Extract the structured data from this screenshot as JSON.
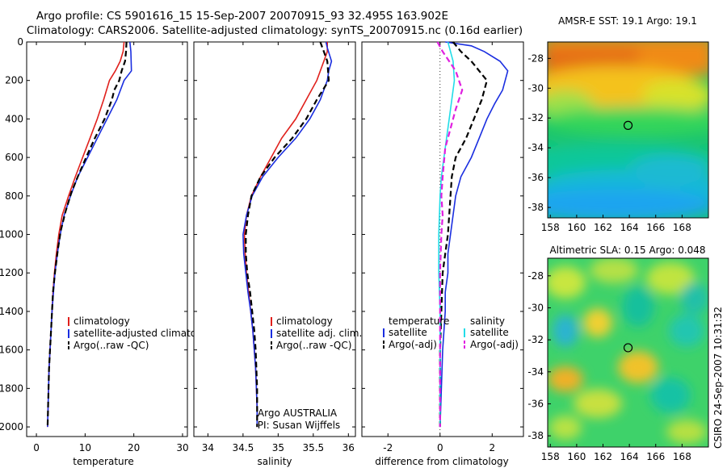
{
  "header": {
    "line1": "Argo profile: CS 5901616_15 15-Sep-2007 20070915_93 32.495S 163.902E",
    "line2": "Climatology: CARS2006. Satellite-adjusted climatology: synTS_20070915.nc (0.16d earlier)"
  },
  "footer": {
    "credit": "CSIRO 24-Sep-2007 10:31:32"
  },
  "colors": {
    "climatology": "#e0201c",
    "satellite": "#1a2ee0",
    "argo": "#000000",
    "satellite_salinity": "#22dde8",
    "argo_salinity_adj": "#e020e0"
  },
  "depth_axis": {
    "ticks": [
      "0",
      "200",
      "400",
      "600",
      "800",
      "1000",
      "1200",
      "1400",
      "1600",
      "1800",
      "2000"
    ],
    "range": [
      0,
      2050
    ],
    "reversed": true
  },
  "chart_data": [
    {
      "type": "line",
      "id": "temperature",
      "xlabel": "temperature",
      "xlim": [
        -2,
        31
      ],
      "xticks": [
        "0",
        "10",
        "20",
        "30"
      ],
      "legend": {
        "placement": "bottom-center",
        "entries": [
          "climatology",
          "satellite-adjusted climatology",
          "Argo(..raw -QC)"
        ]
      },
      "series": [
        {
          "name": "climatology",
          "color_key": "climatology",
          "dash": false,
          "points": [
            [
              18.0,
              0
            ],
            [
              17.8,
              50
            ],
            [
              17.2,
              100
            ],
            [
              16.2,
              150
            ],
            [
              15.0,
              200
            ],
            [
              13.8,
              300
            ],
            [
              12.5,
              400
            ],
            [
              11.0,
              500
            ],
            [
              9.5,
              600
            ],
            [
              8.0,
              700
            ],
            [
              6.6,
              800
            ],
            [
              5.3,
              900
            ],
            [
              4.6,
              1000
            ],
            [
              4.1,
              1100
            ],
            [
              3.7,
              1200
            ],
            [
              3.4,
              1300
            ],
            [
              3.2,
              1400
            ],
            [
              3.0,
              1500
            ],
            [
              2.8,
              1600
            ],
            [
              2.6,
              1700
            ],
            [
              2.5,
              1800
            ],
            [
              2.4,
              1900
            ],
            [
              2.3,
              2000
            ]
          ]
        },
        {
          "name": "satellite-adjusted climatology",
          "color_key": "satellite",
          "dash": false,
          "points": [
            [
              19.2,
              0
            ],
            [
              19.4,
              50
            ],
            [
              19.5,
              150
            ],
            [
              18.0,
              200
            ],
            [
              16.5,
              300
            ],
            [
              14.5,
              400
            ],
            [
              12.5,
              500
            ],
            [
              10.5,
              600
            ],
            [
              8.5,
              700
            ],
            [
              7.0,
              800
            ],
            [
              5.7,
              900
            ],
            [
              4.9,
              1000
            ],
            [
              4.3,
              1100
            ],
            [
              3.8,
              1200
            ],
            [
              3.5,
              1300
            ],
            [
              3.2,
              1400
            ],
            [
              3.0,
              1500
            ],
            [
              2.8,
              1600
            ],
            [
              2.6,
              1700
            ],
            [
              2.5,
              1800
            ],
            [
              2.4,
              1900
            ],
            [
              2.3,
              2000
            ]
          ]
        },
        {
          "name": "Argo(..raw -QC)",
          "color_key": "argo",
          "dash": true,
          "points": [
            [
              18.5,
              0
            ],
            [
              18.4,
              50
            ],
            [
              18.2,
              100
            ],
            [
              17.5,
              150
            ],
            [
              17.0,
              200
            ],
            [
              16.0,
              250
            ],
            [
              15.5,
              300
            ],
            [
              14.0,
              400
            ],
            [
              12.0,
              500
            ],
            [
              10.2,
              600
            ],
            [
              8.5,
              700
            ],
            [
              7.2,
              780
            ],
            [
              6.0,
              880
            ],
            [
              5.0,
              980
            ],
            [
              4.4,
              1080
            ],
            [
              3.8,
              1200
            ],
            [
              3.4,
              1300
            ],
            [
              3.2,
              1400
            ],
            [
              3.0,
              1500
            ],
            [
              2.8,
              1600
            ],
            [
              2.6,
              1700
            ],
            [
              2.5,
              1800
            ],
            [
              2.4,
              1900
            ],
            [
              2.3,
              2000
            ]
          ]
        }
      ]
    },
    {
      "type": "line",
      "id": "salinity",
      "xlabel": "salinity",
      "xlim": [
        33.8,
        36.1
      ],
      "xticks": [
        "34",
        "34.5",
        "35",
        "35.5",
        "36"
      ],
      "legend": {
        "placement": "bottom-center",
        "entries": [
          "climatology",
          "satellite adj. clim.",
          "Argo(..raw -QC)"
        ]
      },
      "annotation": [
        "Argo AUSTRALIA",
        "PI: Susan Wijffels"
      ],
      "series": [
        {
          "name": "climatology",
          "color_key": "climatology",
          "dash": false,
          "points": [
            [
              35.7,
              0
            ],
            [
              35.7,
              50
            ],
            [
              35.65,
              100
            ],
            [
              35.55,
              200
            ],
            [
              35.4,
              300
            ],
            [
              35.25,
              400
            ],
            [
              35.05,
              500
            ],
            [
              34.9,
              600
            ],
            [
              34.75,
              700
            ],
            [
              34.62,
              800
            ],
            [
              34.55,
              900
            ],
            [
              34.52,
              1000
            ],
            [
              34.53,
              1100
            ],
            [
              34.55,
              1200
            ],
            [
              34.58,
              1300
            ],
            [
              34.61,
              1400
            ],
            [
              34.64,
              1500
            ],
            [
              34.66,
              1600
            ],
            [
              34.68,
              1700
            ],
            [
              34.69,
              1800
            ],
            [
              34.7,
              1900
            ],
            [
              34.7,
              2000
            ]
          ]
        },
        {
          "name": "satellite adj. clim.",
          "color_key": "satellite",
          "dash": false,
          "points": [
            [
              35.68,
              0
            ],
            [
              35.7,
              30
            ],
            [
              35.76,
              100
            ],
            [
              35.72,
              150
            ],
            [
              35.7,
              200
            ],
            [
              35.6,
              300
            ],
            [
              35.45,
              400
            ],
            [
              35.25,
              500
            ],
            [
              35.0,
              600
            ],
            [
              34.78,
              700
            ],
            [
              34.63,
              800
            ],
            [
              34.55,
              900
            ],
            [
              34.5,
              1000
            ],
            [
              34.51,
              1100
            ],
            [
              34.54,
              1200
            ],
            [
              34.57,
              1300
            ],
            [
              34.61,
              1400
            ],
            [
              34.64,
              1500
            ],
            [
              34.66,
              1600
            ],
            [
              34.68,
              1700
            ],
            [
              34.69,
              1800
            ],
            [
              34.7,
              1900
            ],
            [
              34.7,
              2000
            ]
          ]
        },
        {
          "name": "Argo(..raw -QC)",
          "color_key": "argo",
          "dash": true,
          "points": [
            [
              35.6,
              0
            ],
            [
              35.65,
              50
            ],
            [
              35.7,
              100
            ],
            [
              35.72,
              200
            ],
            [
              35.55,
              300
            ],
            [
              35.4,
              400
            ],
            [
              35.2,
              500
            ],
            [
              34.95,
              600
            ],
            [
              34.75,
              700
            ],
            [
              34.62,
              800
            ],
            [
              34.57,
              900
            ],
            [
              34.54,
              1000
            ],
            [
              34.54,
              1100
            ],
            [
              34.56,
              1200
            ],
            [
              34.6,
              1300
            ],
            [
              34.63,
              1400
            ],
            [
              34.66,
              1500
            ],
            [
              34.68,
              1600
            ],
            [
              34.69,
              1700
            ],
            [
              34.7,
              1800
            ],
            [
              34.7,
              1900
            ],
            [
              34.7,
              2000
            ]
          ]
        }
      ]
    },
    {
      "type": "line",
      "id": "difference",
      "xlabel": "difference from climatology",
      "xlim": [
        -3,
        3.2
      ],
      "xticks": [
        "-2",
        "0",
        "2"
      ],
      "zero_line": true,
      "legend": {
        "placement": "bottom",
        "columns": [
          {
            "title": "temperature",
            "entries": [
              "satellite",
              "Argo(-adj)"
            ]
          },
          {
            "title": "salinity",
            "entries": [
              "satellite",
              "Argo(-adj)"
            ]
          }
        ]
      },
      "series": [
        {
          "name": "satellite",
          "group": "temperature",
          "color_key": "satellite",
          "dash": false,
          "points": [
            [
              0.2,
              0
            ],
            [
              1.2,
              20
            ],
            [
              1.7,
              50
            ],
            [
              2.3,
              100
            ],
            [
              2.6,
              150
            ],
            [
              2.5,
              200
            ],
            [
              2.4,
              250
            ],
            [
              2.1,
              320
            ],
            [
              1.8,
              400
            ],
            [
              1.5,
              500
            ],
            [
              1.2,
              600
            ],
            [
              0.8,
              700
            ],
            [
              0.6,
              800
            ],
            [
              0.5,
              900
            ],
            [
              0.4,
              1000
            ],
            [
              0.3,
              1100
            ],
            [
              0.3,
              1200
            ],
            [
              0.2,
              1300
            ],
            [
              0.2,
              1400
            ],
            [
              0.1,
              1600
            ],
            [
              0.05,
              1800
            ],
            [
              0.0,
              2000
            ]
          ]
        },
        {
          "name": "Argo(-adj)",
          "group": "temperature",
          "color_key": "argo",
          "dash": true,
          "points": [
            [
              0.5,
              0
            ],
            [
              0.8,
              50
            ],
            [
              1.2,
              100
            ],
            [
              1.8,
              200
            ],
            [
              1.6,
              300
            ],
            [
              1.3,
              400
            ],
            [
              1.0,
              500
            ],
            [
              0.6,
              600
            ],
            [
              0.45,
              700
            ],
            [
              0.4,
              800
            ],
            [
              0.35,
              900
            ],
            [
              0.3,
              1000
            ],
            [
              0.2,
              1100
            ],
            [
              0.1,
              1200
            ],
            [
              0.05,
              1400
            ],
            [
              0.0,
              1600
            ],
            [
              0.0,
              2000
            ]
          ]
        },
        {
          "name": "satellite",
          "group": "salinity",
          "color_key": "satellite_salinity",
          "dash": false,
          "points": [
            [
              0.3,
              0
            ],
            [
              0.4,
              50
            ],
            [
              0.5,
              100
            ],
            [
              0.55,
              200
            ],
            [
              0.45,
              300
            ],
            [
              0.35,
              400
            ],
            [
              0.25,
              500
            ],
            [
              0.15,
              600
            ],
            [
              0.05,
              700
            ],
            [
              0.0,
              800
            ],
            [
              -0.05,
              1000
            ],
            [
              -0.05,
              1200
            ],
            [
              0.0,
              1400
            ],
            [
              0.0,
              2000
            ]
          ]
        },
        {
          "name": "Argo(-adj)",
          "group": "salinity",
          "color_key": "argo_salinity_adj",
          "dash": true,
          "points": [
            [
              -0.1,
              0
            ],
            [
              0.1,
              50
            ],
            [
              0.6,
              150
            ],
            [
              0.85,
              250
            ],
            [
              0.6,
              350
            ],
            [
              0.4,
              450
            ],
            [
              0.2,
              550
            ],
            [
              0.1,
              700
            ],
            [
              0.05,
              800
            ],
            [
              0.1,
              900
            ],
            [
              0.05,
              1000
            ],
            [
              0.0,
              1200
            ],
            [
              0.0,
              2000
            ]
          ]
        }
      ]
    }
  ],
  "maps": [
    {
      "id": "sst",
      "title": "AMSR-E SST: 19.1 Argo: 19.1",
      "xticks": [
        "158",
        "160",
        "162",
        "164",
        "166",
        "168"
      ],
      "yticks": [
        "-28",
        "-30",
        "-32",
        "-34",
        "-36",
        "-38"
      ],
      "xlim": [
        157.8,
        170.0
      ],
      "ylim": [
        -38.7,
        -26.9
      ],
      "marker": {
        "lon": 163.902,
        "lat": -32.495
      }
    },
    {
      "id": "sla",
      "title": "Altimetric SLA: 0.15 Argo: 0.048",
      "xticks": [
        "158",
        "160",
        "162",
        "164",
        "166",
        "168"
      ],
      "yticks": [
        "-28",
        "-30",
        "-32",
        "-34",
        "-36",
        "-38"
      ],
      "xlim": [
        157.8,
        170.0
      ],
      "ylim": [
        -38.7,
        -26.9
      ],
      "marker": {
        "lon": 163.902,
        "lat": -32.495
      }
    }
  ]
}
